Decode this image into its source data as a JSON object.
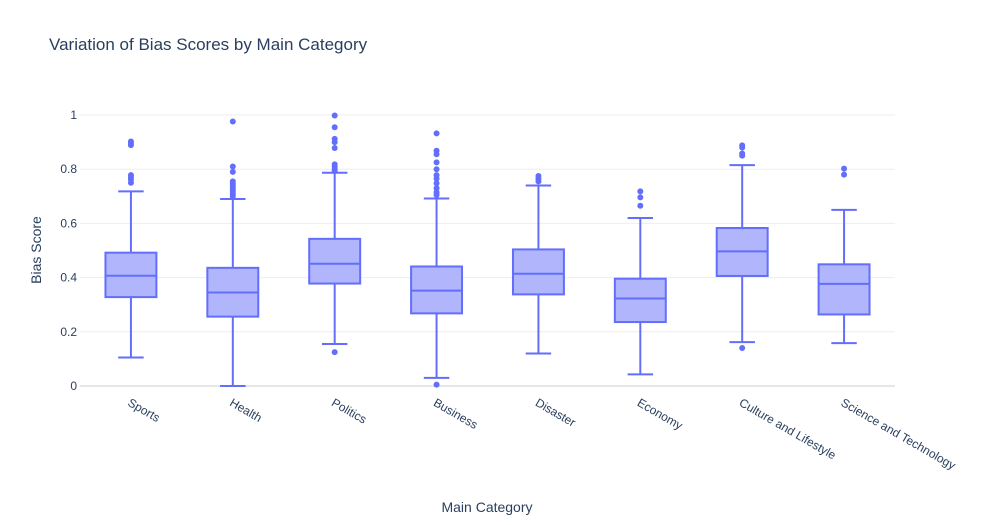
{
  "chart_data": {
    "type": "box",
    "title": "Variation of Bias Scores by Main Category",
    "xlabel": "Main Category",
    "ylabel": "Bias Score",
    "ylim": [
      0,
      1
    ],
    "yticks": [
      0,
      0.2,
      0.4,
      0.6,
      0.8,
      1
    ],
    "ytick_labels": [
      "0",
      "0.2",
      "0.4",
      "0.6",
      "0.8",
      "1"
    ],
    "grid": true,
    "legend": "none",
    "colors": {
      "box_line": "#636efa",
      "box_fill": "#b0b5fc",
      "grid": "#eeeeee",
      "text": "#2a3f5f"
    },
    "categories": [
      "Sports",
      "Health",
      "Politics",
      "Business",
      "Disaster",
      "Economy",
      "Culture and Lifestyle",
      "Science and Technology"
    ],
    "boxes": [
      {
        "lowerfence": 0.105,
        "q1": 0.328,
        "median": 0.407,
        "q3": 0.492,
        "upperfence": 0.718,
        "outliers": [
          0.902,
          0.896,
          0.889,
          0.778,
          0.77,
          0.762,
          0.75
        ]
      },
      {
        "lowerfence": 0.0,
        "q1": 0.256,
        "median": 0.345,
        "q3": 0.436,
        "upperfence": 0.69,
        "outliers": [
          0.976,
          0.81,
          0.79,
          0.755,
          0.748,
          0.74,
          0.733,
          0.725,
          0.717,
          0.708,
          0.7
        ]
      },
      {
        "lowerfence": 0.155,
        "q1": 0.378,
        "median": 0.451,
        "q3": 0.543,
        "upperfence": 0.787,
        "outliers": [
          0.125,
          0.998,
          0.955,
          0.912,
          0.9,
          0.878,
          0.818,
          0.81,
          0.8,
          0.793
        ]
      },
      {
        "lowerfence": 0.03,
        "q1": 0.268,
        "median": 0.352,
        "q3": 0.441,
        "upperfence": 0.692,
        "outliers": [
          0.005,
          0.932,
          0.868,
          0.855,
          0.825,
          0.8,
          0.778,
          0.765,
          0.748,
          0.73,
          0.715,
          0.705
        ]
      },
      {
        "lowerfence": 0.12,
        "q1": 0.338,
        "median": 0.414,
        "q3": 0.504,
        "upperfence": 0.74,
        "outliers": [
          0.775,
          0.765,
          0.755
        ]
      },
      {
        "lowerfence": 0.043,
        "q1": 0.236,
        "median": 0.323,
        "q3": 0.396,
        "upperfence": 0.62,
        "outliers": [
          0.718,
          0.696,
          0.665
        ]
      },
      {
        "lowerfence": 0.162,
        "q1": 0.406,
        "median": 0.497,
        "q3": 0.583,
        "upperfence": 0.815,
        "outliers": [
          0.14,
          0.888,
          0.88,
          0.858,
          0.85
        ]
      },
      {
        "lowerfence": 0.158,
        "q1": 0.264,
        "median": 0.377,
        "q3": 0.449,
        "upperfence": 0.65,
        "outliers": [
          0.802,
          0.78
        ]
      }
    ]
  }
}
